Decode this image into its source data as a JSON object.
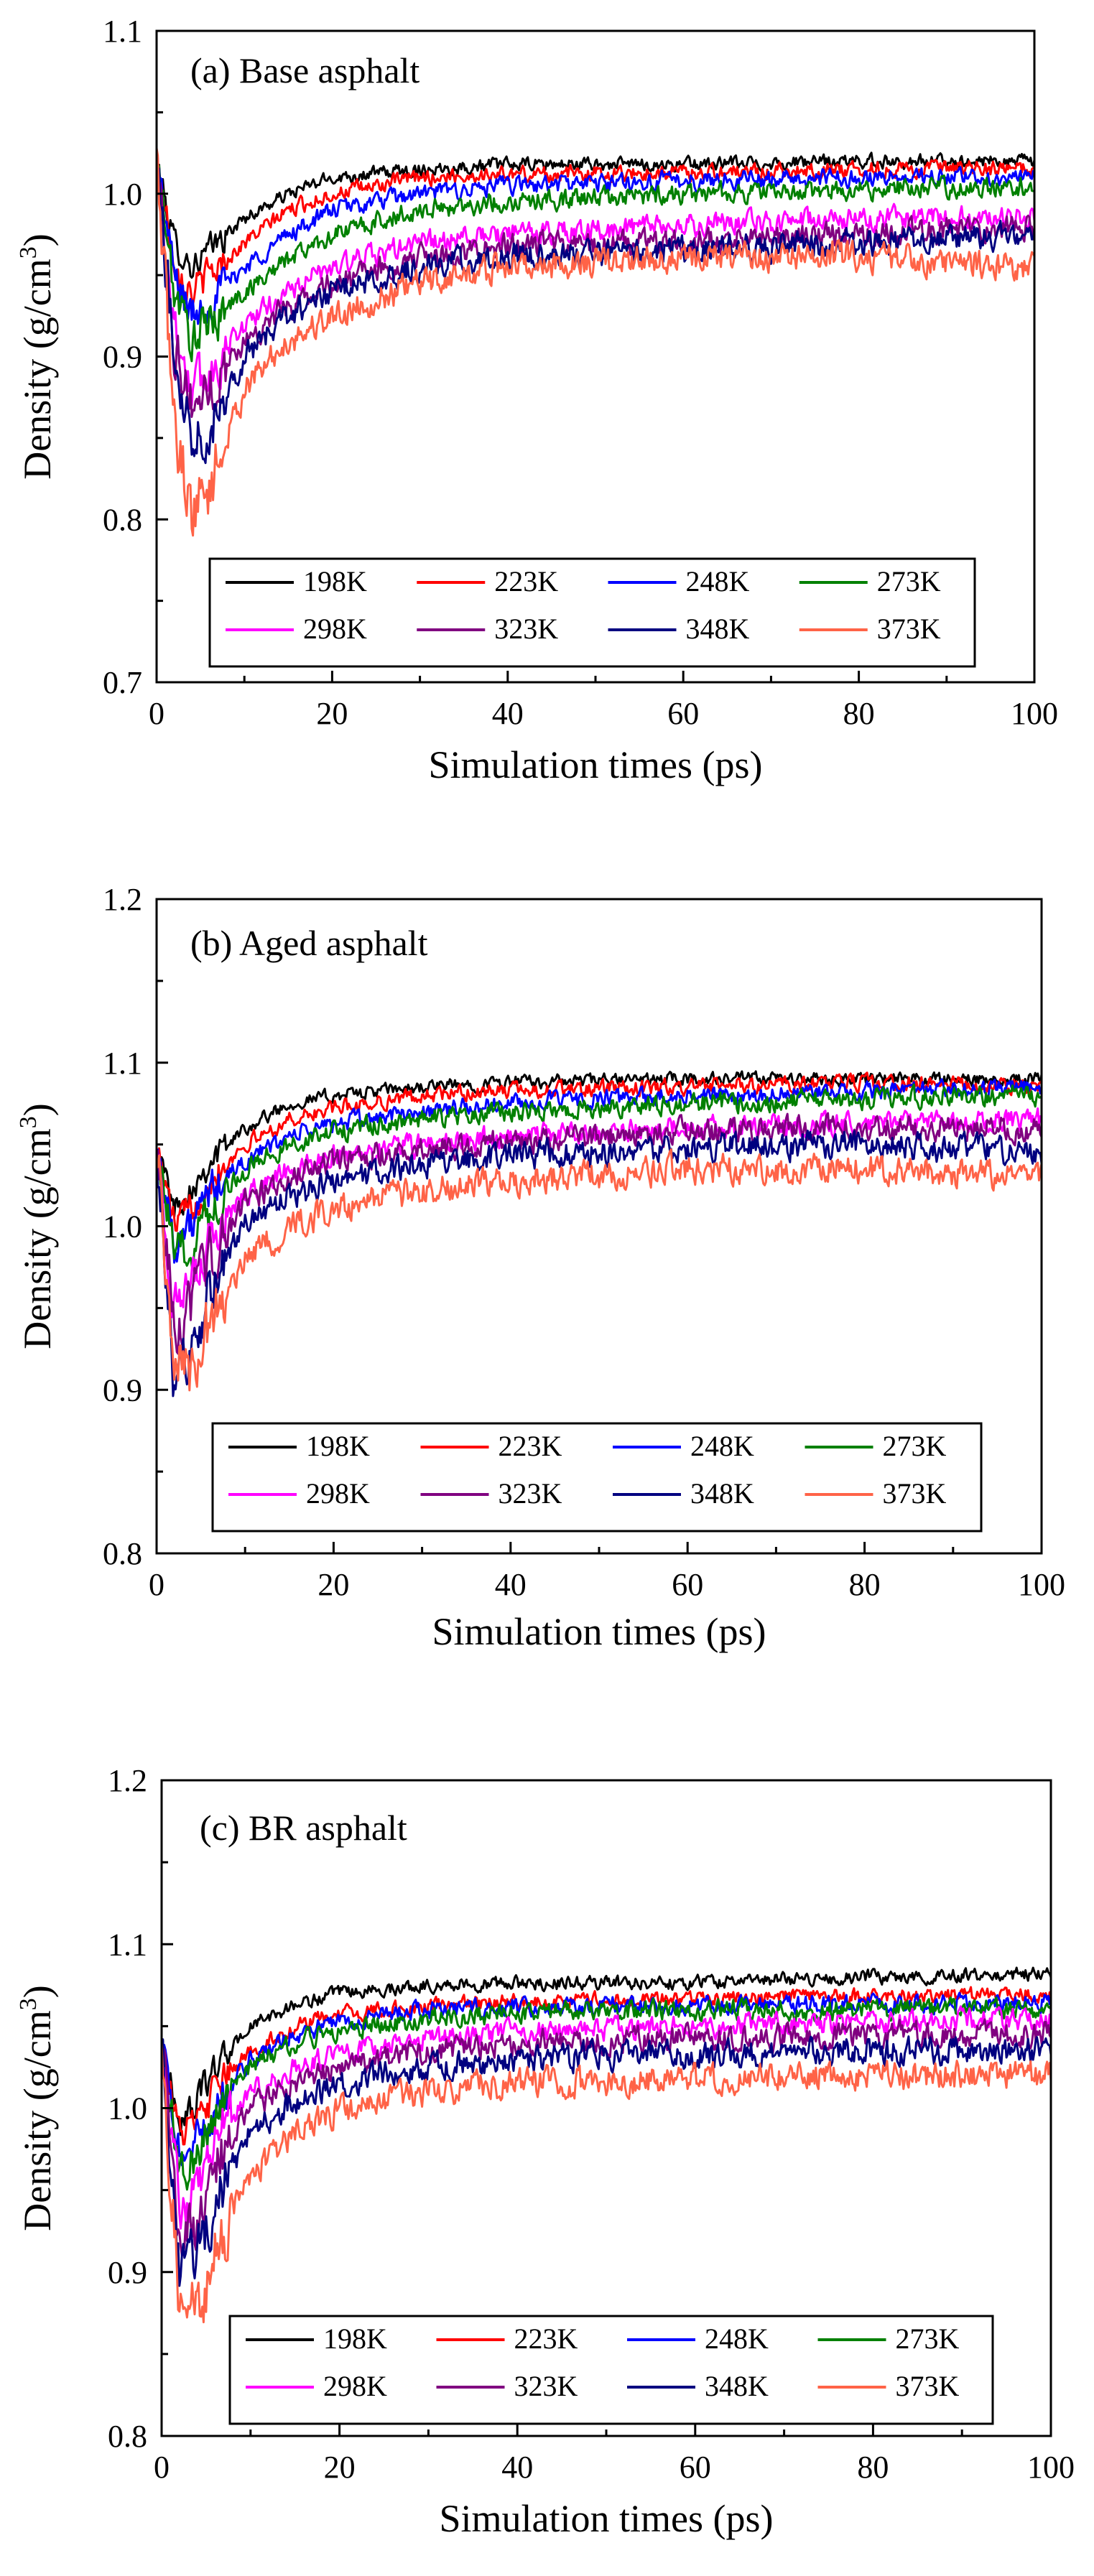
{
  "colors": {
    "198K": "#000000",
    "223K": "#ff0000",
    "248K": "#0000ff",
    "273K": "#008000",
    "298K": "#ff00ff",
    "323K": "#800080",
    "348K": "#000080",
    "373K": "#ff6347"
  },
  "chart_data": [
    {
      "type": "line",
      "title": "(a) Base asphalt",
      "xlabel": "Simulation times (ps)",
      "ylabel": "Density (g/cm3)",
      "xlim": [
        0,
        100
      ],
      "ylim": [
        0.7,
        1.1
      ],
      "xticks": [
        "0",
        "20",
        "40",
        "60",
        "80",
        "100"
      ],
      "yticks": [
        "0.7",
        "0.8",
        "0.9",
        "1.0",
        "1.1"
      ],
      "legend": "bottom-center, 4 columns",
      "series": [
        {
          "name": "198K",
          "color": "#000000",
          "x": [
            0,
            2,
            4,
            6,
            10,
            15,
            20,
            30,
            40,
            60,
            80,
            100
          ],
          "y": [
            1.02,
            0.97,
            0.955,
            0.965,
            0.985,
            1.0,
            1.01,
            1.015,
            1.018,
            1.018,
            1.02,
            1.02
          ]
        },
        {
          "name": "223K",
          "color": "#ff0000",
          "x": [
            0,
            2,
            4,
            6,
            10,
            15,
            20,
            30,
            40,
            60,
            80,
            100
          ],
          "y": [
            1.02,
            0.96,
            0.94,
            0.95,
            0.97,
            0.99,
            1.0,
            1.01,
            1.012,
            1.013,
            1.015,
            1.015
          ]
        },
        {
          "name": "248K",
          "color": "#0000ff",
          "x": [
            0,
            2,
            4,
            6,
            10,
            15,
            20,
            30,
            40,
            60,
            80,
            100
          ],
          "y": [
            1.02,
            0.95,
            0.925,
            0.935,
            0.955,
            0.975,
            0.99,
            1.0,
            1.005,
            1.008,
            1.01,
            1.01
          ]
        },
        {
          "name": "273K",
          "color": "#008000",
          "x": [
            0,
            2,
            4,
            6,
            10,
            15,
            20,
            30,
            40,
            60,
            80,
            100
          ],
          "y": [
            1.02,
            0.94,
            0.91,
            0.92,
            0.94,
            0.96,
            0.975,
            0.99,
            0.995,
            1.0,
            1.002,
            1.005
          ]
        },
        {
          "name": "298K",
          "color": "#ff00ff",
          "x": [
            0,
            2,
            4,
            6,
            10,
            15,
            20,
            30,
            40,
            60,
            80,
            100
          ],
          "y": [
            1.02,
            0.92,
            0.88,
            0.89,
            0.92,
            0.94,
            0.955,
            0.97,
            0.975,
            0.98,
            0.985,
            0.985
          ]
        },
        {
          "name": "323K",
          "color": "#800080",
          "x": [
            0,
            2,
            4,
            6,
            10,
            15,
            20,
            30,
            40,
            60,
            80,
            100
          ],
          "y": [
            1.02,
            0.91,
            0.87,
            0.88,
            0.91,
            0.93,
            0.945,
            0.96,
            0.968,
            0.97,
            0.975,
            0.98
          ]
        },
        {
          "name": "348K",
          "color": "#000080",
          "x": [
            0,
            2,
            4,
            6,
            10,
            15,
            20,
            30,
            40,
            60,
            80,
            100
          ],
          "y": [
            1.02,
            0.9,
            0.855,
            0.86,
            0.9,
            0.925,
            0.94,
            0.955,
            0.962,
            0.965,
            0.97,
            0.975
          ]
        },
        {
          "name": "373K",
          "color": "#ff6347",
          "x": [
            0,
            2,
            4,
            6,
            10,
            15,
            20,
            30,
            40,
            60,
            80,
            100
          ],
          "y": [
            1.02,
            0.86,
            0.805,
            0.82,
            0.88,
            0.91,
            0.925,
            0.945,
            0.955,
            0.96,
            0.962,
            0.955
          ]
        }
      ]
    },
    {
      "type": "line",
      "title": "(b) Aged asphalt",
      "xlabel": "Simulation times (ps)",
      "ylabel": "Density (g/cm3)",
      "xlim": [
        0,
        100
      ],
      "ylim": [
        0.8,
        1.2
      ],
      "xticks": [
        "0",
        "20",
        "40",
        "60",
        "80",
        "100"
      ],
      "yticks": [
        "0.8",
        "0.9",
        "1.0",
        "1.1",
        "1.2"
      ],
      "legend": "bottom-center, 4 columns",
      "series": [
        {
          "name": "198K",
          "color": "#000000",
          "x": [
            0,
            2,
            4,
            6,
            10,
            15,
            20,
            30,
            40,
            60,
            80,
            100
          ],
          "y": [
            1.05,
            1.01,
            1.025,
            1.04,
            1.06,
            1.075,
            1.08,
            1.085,
            1.088,
            1.09,
            1.09,
            1.09
          ]
        },
        {
          "name": "223K",
          "color": "#ff0000",
          "x": [
            0,
            2,
            4,
            6,
            10,
            15,
            20,
            30,
            40,
            60,
            80,
            100
          ],
          "y": [
            1.05,
            1.0,
            1.01,
            1.03,
            1.05,
            1.065,
            1.072,
            1.08,
            1.083,
            1.085,
            1.088,
            1.085
          ]
        },
        {
          "name": "248K",
          "color": "#0000ff",
          "x": [
            0,
            2,
            4,
            6,
            10,
            15,
            20,
            30,
            40,
            60,
            80,
            100
          ],
          "y": [
            1.05,
            0.99,
            1.0,
            1.02,
            1.04,
            1.055,
            1.063,
            1.07,
            1.075,
            1.08,
            1.082,
            1.085
          ]
        },
        {
          "name": "273K",
          "color": "#008000",
          "x": [
            0,
            2,
            4,
            6,
            10,
            15,
            20,
            30,
            40,
            60,
            80,
            100
          ],
          "y": [
            1.05,
            0.98,
            0.99,
            1.01,
            1.035,
            1.05,
            1.058,
            1.065,
            1.07,
            1.075,
            1.078,
            1.08
          ]
        },
        {
          "name": "298K",
          "color": "#ff00ff",
          "x": [
            0,
            2,
            4,
            6,
            10,
            15,
            20,
            30,
            40,
            60,
            80,
            100
          ],
          "y": [
            1.05,
            0.95,
            0.96,
            0.99,
            1.02,
            1.035,
            1.043,
            1.05,
            1.055,
            1.06,
            1.062,
            1.065
          ]
        },
        {
          "name": "323K",
          "color": "#800080",
          "x": [
            0,
            2,
            4,
            6,
            10,
            15,
            20,
            30,
            40,
            60,
            80,
            100
          ],
          "y": [
            1.05,
            0.94,
            0.95,
            0.98,
            1.015,
            1.03,
            1.04,
            1.048,
            1.052,
            1.058,
            1.06,
            1.06
          ]
        },
        {
          "name": "348K",
          "color": "#000080",
          "x": [
            0,
            2,
            4,
            6,
            10,
            15,
            20,
            30,
            40,
            60,
            80,
            100
          ],
          "y": [
            1.05,
            0.9,
            0.92,
            0.96,
            1.0,
            1.018,
            1.028,
            1.038,
            1.043,
            1.048,
            1.05,
            1.045
          ]
        },
        {
          "name": "373K",
          "color": "#ff6347",
          "x": [
            0,
            2,
            4,
            6,
            10,
            15,
            20,
            30,
            40,
            60,
            80,
            100
          ],
          "y": [
            1.05,
            0.92,
            0.91,
            0.94,
            0.98,
            1.0,
            1.01,
            1.022,
            1.028,
            1.035,
            1.035,
            1.03
          ]
        }
      ]
    },
    {
      "type": "line",
      "title": "(c) BR asphalt",
      "xlabel": "Simulation times (ps)",
      "ylabel": "Density (g/cm3)",
      "xlim": [
        0,
        100
      ],
      "ylim": [
        0.8,
        1.2
      ],
      "xticks": [
        "0",
        "20",
        "40",
        "60",
        "80",
        "100"
      ],
      "yticks": [
        "0.8",
        "0.9",
        "1.0",
        "1.1",
        "1.2"
      ],
      "legend": "bottom-center, 4 columns",
      "series": [
        {
          "name": "198K",
          "color": "#000000",
          "x": [
            0,
            2,
            4,
            6,
            10,
            15,
            20,
            30,
            40,
            60,
            80,
            100
          ],
          "y": [
            1.04,
            0.99,
            1.005,
            1.025,
            1.05,
            1.063,
            1.07,
            1.075,
            1.076,
            1.077,
            1.08,
            1.082
          ]
        },
        {
          "name": "223K",
          "color": "#ff0000",
          "x": [
            0,
            2,
            4,
            6,
            10,
            15,
            20,
            30,
            40,
            60,
            80,
            100
          ],
          "y": [
            1.04,
            0.985,
            0.99,
            1.01,
            1.035,
            1.05,
            1.057,
            1.062,
            1.065,
            1.067,
            1.068,
            1.07
          ]
        },
        {
          "name": "248K",
          "color": "#0000ff",
          "x": [
            0,
            2,
            4,
            6,
            10,
            15,
            20,
            30,
            40,
            60,
            80,
            100
          ],
          "y": [
            1.04,
            0.97,
            0.98,
            1.0,
            1.03,
            1.045,
            1.053,
            1.06,
            1.062,
            1.063,
            1.064,
            1.065
          ]
        },
        {
          "name": "273K",
          "color": "#008000",
          "x": [
            0,
            2,
            4,
            6,
            10,
            15,
            20,
            30,
            40,
            60,
            80,
            100
          ],
          "y": [
            1.04,
            0.96,
            0.97,
            0.995,
            1.025,
            1.04,
            1.048,
            1.055,
            1.058,
            1.06,
            1.06,
            1.06
          ]
        },
        {
          "name": "298K",
          "color": "#ff00ff",
          "x": [
            0,
            2,
            4,
            6,
            10,
            15,
            20,
            30,
            40,
            60,
            80,
            100
          ],
          "y": [
            1.04,
            0.94,
            0.95,
            0.98,
            1.01,
            1.025,
            1.033,
            1.042,
            1.046,
            1.05,
            1.052,
            1.055
          ]
        },
        {
          "name": "323K",
          "color": "#800080",
          "x": [
            0,
            2,
            4,
            6,
            10,
            15,
            20,
            30,
            40,
            60,
            80,
            100
          ],
          "y": [
            1.04,
            0.92,
            0.93,
            0.965,
            1.0,
            1.015,
            1.025,
            1.035,
            1.04,
            1.043,
            1.045,
            1.045
          ]
        },
        {
          "name": "348K",
          "color": "#000080",
          "x": [
            0,
            2,
            4,
            6,
            10,
            15,
            20,
            30,
            40,
            60,
            80,
            100
          ],
          "y": [
            1.04,
            0.9,
            0.91,
            0.945,
            0.985,
            1.005,
            1.015,
            1.025,
            1.03,
            1.033,
            1.035,
            1.035
          ]
        },
        {
          "name": "373K",
          "color": "#ff6347",
          "x": [
            0,
            2,
            4,
            6,
            10,
            15,
            20,
            30,
            40,
            60,
            80,
            100
          ],
          "y": [
            1.04,
            0.88,
            0.875,
            0.91,
            0.96,
            0.985,
            0.998,
            1.01,
            1.015,
            1.018,
            1.02,
            1.02
          ]
        }
      ]
    }
  ]
}
